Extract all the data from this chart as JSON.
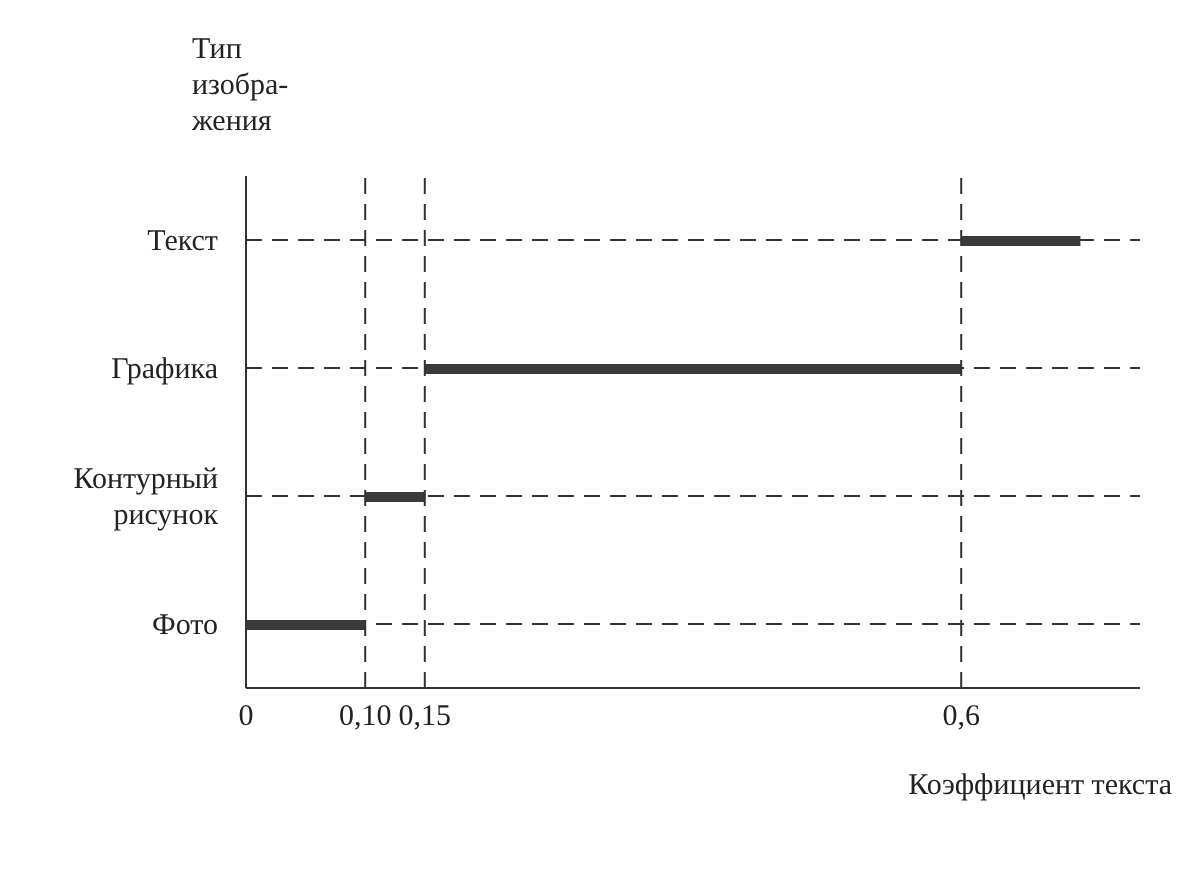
{
  "chart_data": {
    "type": "bar",
    "orientation": "horizontal",
    "ylabel": "Тип\nизобра-\nжения",
    "xlabel": "Коэффициент текста",
    "categories": [
      "Текст",
      "Графика",
      "Контурный рисунок",
      "Фото"
    ],
    "base": [
      0.6,
      0.15,
      0.1,
      0
    ],
    "values": [
      0.1,
      0.45,
      0.05,
      0.1
    ],
    "color": "#3a3a3a",
    "xlim": [
      0,
      0.75
    ],
    "xticks": [
      0,
      {
        "value": 0.1,
        "label": "0,10"
      },
      {
        "value": 0.15,
        "label": "0,15"
      },
      {
        "value": 0.6,
        "label": "0,6"
      }
    ],
    "grid": "y",
    "ref_lines": [
      {
        "axis": "x",
        "value": 0.1,
        "line_style": "dashed"
      },
      {
        "axis": "x",
        "value": 0.15,
        "line_style": "dashed"
      },
      {
        "axis": "x",
        "value": 0.6,
        "line_style": "dashed"
      }
    ]
  }
}
